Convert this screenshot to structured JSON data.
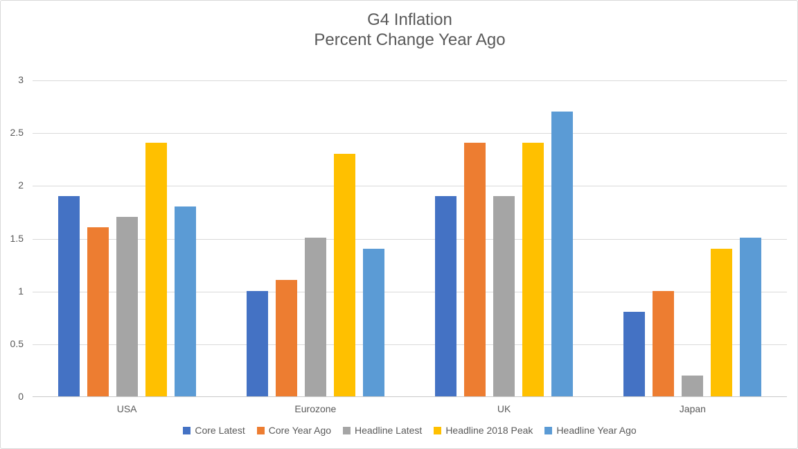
{
  "chart_data": {
    "type": "bar",
    "title": "G4 Inflation",
    "subtitle": "Percent Change Year Ago",
    "categories": [
      "USA",
      "Eurozone",
      "UK",
      "Japan"
    ],
    "series": [
      {
        "name": "Core Latest",
        "color": "#4472C4",
        "values": [
          1.9,
          1.0,
          1.9,
          0.8
        ]
      },
      {
        "name": "Core Year Ago",
        "color": "#ED7D31",
        "values": [
          1.6,
          1.1,
          2.4,
          1.0
        ]
      },
      {
        "name": "Headline Latest",
        "color": "#A5A5A5",
        "values": [
          1.7,
          1.5,
          1.9,
          0.2
        ]
      },
      {
        "name": "Headline 2018 Peak",
        "color": "#FFC000",
        "values": [
          2.4,
          2.3,
          2.4,
          1.4
        ]
      },
      {
        "name": "Headline Year Ago",
        "color": "#5B9BD5",
        "values": [
          1.8,
          1.4,
          2.7,
          1.5
        ]
      }
    ],
    "ylim": [
      0,
      3
    ],
    "yticks": [
      "0",
      "0.5",
      "1",
      "1.5",
      "2",
      "2.5",
      "3"
    ],
    "grid": true,
    "legend_position": "bottom",
    "styles": {
      "text_color": "#595959",
      "gridline_color": "#D9D9D9",
      "axis_line_color": "#C9C9C9",
      "border_color": "#D9D9D9",
      "background": "#FFFFFF"
    }
  }
}
